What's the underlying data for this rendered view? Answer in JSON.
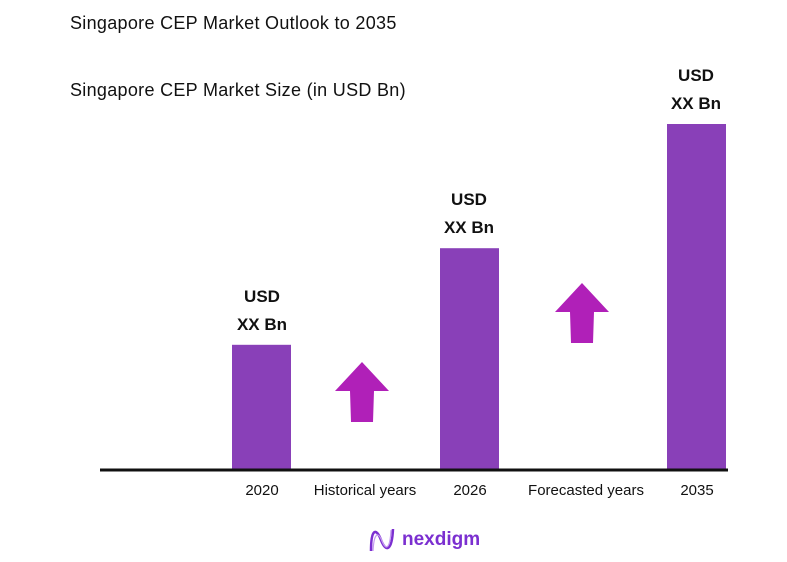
{
  "title": "Singapore CEP Market Outlook to 2035",
  "chart_data": {
    "type": "bar",
    "title": "Singapore CEP Market Size (in USD Bn)",
    "categories": [
      "2020",
      "2026",
      "2035"
    ],
    "relative_values": [
      0.36,
      0.64,
      1.0
    ],
    "data_labels": [
      [
        "USD",
        "XX Bn"
      ],
      [
        "USD",
        "XX Bn"
      ],
      [
        "USD",
        "XX Bn"
      ]
    ],
    "period_labels": [
      "Historical years",
      "Forecasted years"
    ],
    "bar_color": "#8940B8",
    "arrow_color": "#B020B8",
    "grid": false,
    "legend": "none"
  },
  "logo": {
    "text": "nexdigm"
  }
}
